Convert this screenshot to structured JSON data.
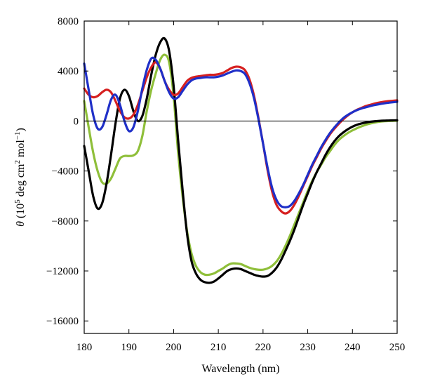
{
  "chart_data": {
    "type": "line",
    "title": "",
    "xlabel": "Wavelength (nm)",
    "ylabel_parts": {
      "symbol": "θ",
      "open": " (10",
      "exp1": "5",
      "mid": " deg cm",
      "exp2": "2",
      "unit": " mol",
      "exp3": "−1",
      "close": ")"
    },
    "xlim": [
      180,
      250
    ],
    "ylim": [
      -17000,
      8000
    ],
    "xticks": [
      180,
      190,
      200,
      210,
      220,
      230,
      240,
      250
    ],
    "xtick_labels": [
      "180",
      "190",
      "200",
      "210",
      "220",
      "230",
      "240",
      "250"
    ],
    "yticks": [
      -16000,
      -12000,
      -8000,
      -4000,
      0,
      4000,
      8000
    ],
    "ytick_labels": [
      "−16000",
      "−12000",
      "−8000",
      "−4000",
      "0",
      "4000",
      "8000"
    ],
    "zero_line": true,
    "grid": false,
    "legend": "none",
    "series": [
      {
        "color": "#8fbf3a",
        "points": [
          [
            180,
            1600
          ],
          [
            181,
            -500
          ],
          [
            182,
            -2500
          ],
          [
            183,
            -4000
          ],
          [
            184,
            -4900
          ],
          [
            185,
            -5000
          ],
          [
            186,
            -4600
          ],
          [
            187,
            -3800
          ],
          [
            188,
            -3000
          ],
          [
            189,
            -2800
          ],
          [
            190,
            -2800
          ],
          [
            191,
            -2750
          ],
          [
            192,
            -2400
          ],
          [
            193,
            -1200
          ],
          [
            194,
            800
          ],
          [
            195,
            2500
          ],
          [
            196,
            3800
          ],
          [
            197,
            4900
          ],
          [
            198,
            5300
          ],
          [
            199,
            4700
          ],
          [
            200,
            2000
          ],
          [
            201,
            -2500
          ],
          [
            202,
            -6000
          ],
          [
            203,
            -8800
          ],
          [
            204,
            -10600
          ],
          [
            205,
            -11600
          ],
          [
            206,
            -12100
          ],
          [
            207,
            -12300
          ],
          [
            208,
            -12300
          ],
          [
            209,
            -12200
          ],
          [
            210,
            -12000
          ],
          [
            211,
            -11800
          ],
          [
            212,
            -11550
          ],
          [
            213,
            -11400
          ],
          [
            214,
            -11400
          ],
          [
            215,
            -11450
          ],
          [
            216,
            -11600
          ],
          [
            217,
            -11750
          ],
          [
            218,
            -11850
          ],
          [
            219,
            -11900
          ],
          [
            220,
            -11900
          ],
          [
            221,
            -11800
          ],
          [
            222,
            -11600
          ],
          [
            223,
            -11250
          ],
          [
            224,
            -10700
          ],
          [
            225,
            -10000
          ],
          [
            226,
            -9200
          ],
          [
            227,
            -8300
          ],
          [
            228,
            -7400
          ],
          [
            229,
            -6500
          ],
          [
            230,
            -5600
          ],
          [
            231,
            -4800
          ],
          [
            232,
            -4100
          ],
          [
            233,
            -3500
          ],
          [
            234,
            -2900
          ],
          [
            235,
            -2400
          ],
          [
            236,
            -1900
          ],
          [
            237,
            -1500
          ],
          [
            238,
            -1200
          ],
          [
            239,
            -950
          ],
          [
            240,
            -750
          ],
          [
            241,
            -580
          ],
          [
            242,
            -430
          ],
          [
            243,
            -300
          ],
          [
            244,
            -200
          ],
          [
            245,
            -120
          ],
          [
            246,
            -60
          ],
          [
            247,
            -20
          ],
          [
            248,
            0
          ],
          [
            249,
            10
          ],
          [
            250,
            20
          ]
        ]
      },
      {
        "color": "#000000",
        "points": [
          [
            180,
            -2000
          ],
          [
            181,
            -4000
          ],
          [
            182,
            -6000
          ],
          [
            183,
            -7000
          ],
          [
            184,
            -6600
          ],
          [
            185,
            -5000
          ],
          [
            186,
            -2700
          ],
          [
            187,
            -200
          ],
          [
            188,
            1800
          ],
          [
            189,
            2500
          ],
          [
            190,
            2000
          ],
          [
            191,
            800
          ],
          [
            192,
            0
          ],
          [
            193,
            400
          ],
          [
            194,
            1800
          ],
          [
            195,
            3700
          ],
          [
            196,
            5300
          ],
          [
            197,
            6300
          ],
          [
            198,
            6600
          ],
          [
            199,
            5600
          ],
          [
            200,
            2800
          ],
          [
            201,
            -1500
          ],
          [
            202,
            -5500
          ],
          [
            203,
            -9000
          ],
          [
            204,
            -11200
          ],
          [
            205,
            -12200
          ],
          [
            206,
            -12700
          ],
          [
            207,
            -12900
          ],
          [
            208,
            -12950
          ],
          [
            209,
            -12850
          ],
          [
            210,
            -12600
          ],
          [
            211,
            -12300
          ],
          [
            212,
            -12000
          ],
          [
            213,
            -11850
          ],
          [
            214,
            -11800
          ],
          [
            215,
            -11850
          ],
          [
            216,
            -12000
          ],
          [
            217,
            -12150
          ],
          [
            218,
            -12300
          ],
          [
            219,
            -12400
          ],
          [
            220,
            -12450
          ],
          [
            221,
            -12400
          ],
          [
            222,
            -12150
          ],
          [
            223,
            -11750
          ],
          [
            224,
            -11150
          ],
          [
            225,
            -10400
          ],
          [
            226,
            -9600
          ],
          [
            227,
            -8700
          ],
          [
            228,
            -7700
          ],
          [
            229,
            -6700
          ],
          [
            230,
            -5800
          ],
          [
            231,
            -4900
          ],
          [
            232,
            -4100
          ],
          [
            233,
            -3400
          ],
          [
            234,
            -2700
          ],
          [
            235,
            -2100
          ],
          [
            236,
            -1600
          ],
          [
            237,
            -1200
          ],
          [
            238,
            -900
          ],
          [
            239,
            -650
          ],
          [
            240,
            -450
          ],
          [
            241,
            -300
          ],
          [
            242,
            -200
          ],
          [
            243,
            -120
          ],
          [
            244,
            -60
          ],
          [
            245,
            -20
          ],
          [
            246,
            10
          ],
          [
            247,
            30
          ],
          [
            248,
            40
          ],
          [
            249,
            50
          ],
          [
            250,
            60
          ]
        ]
      },
      {
        "color": "#d62020",
        "points": [
          [
            180,
            2600
          ],
          [
            181,
            2100
          ],
          [
            182,
            1900
          ],
          [
            183,
            2000
          ],
          [
            184,
            2300
          ],
          [
            185,
            2500
          ],
          [
            186,
            2300
          ],
          [
            187,
            1600
          ],
          [
            188,
            800
          ],
          [
            189,
            300
          ],
          [
            190,
            200
          ],
          [
            191,
            500
          ],
          [
            192,
            1300
          ],
          [
            193,
            2400
          ],
          [
            194,
            3500
          ],
          [
            195,
            4300
          ],
          [
            196,
            4700
          ],
          [
            197,
            4200
          ],
          [
            198,
            3200
          ],
          [
            199,
            2500
          ],
          [
            200,
            2100
          ],
          [
            201,
            2200
          ],
          [
            202,
            2700
          ],
          [
            203,
            3200
          ],
          [
            204,
            3450
          ],
          [
            205,
            3550
          ],
          [
            206,
            3600
          ],
          [
            207,
            3650
          ],
          [
            208,
            3700
          ],
          [
            209,
            3700
          ],
          [
            210,
            3750
          ],
          [
            211,
            3850
          ],
          [
            212,
            4050
          ],
          [
            213,
            4250
          ],
          [
            214,
            4350
          ],
          [
            215,
            4300
          ],
          [
            216,
            4050
          ],
          [
            217,
            3300
          ],
          [
            218,
            2000
          ],
          [
            219,
            200
          ],
          [
            220,
            -1800
          ],
          [
            221,
            -3900
          ],
          [
            222,
            -5600
          ],
          [
            223,
            -6700
          ],
          [
            224,
            -7200
          ],
          [
            225,
            -7400
          ],
          [
            226,
            -7200
          ],
          [
            227,
            -6700
          ],
          [
            228,
            -6000
          ],
          [
            229,
            -5200
          ],
          [
            230,
            -4400
          ],
          [
            231,
            -3600
          ],
          [
            232,
            -2900
          ],
          [
            233,
            -2200
          ],
          [
            234,
            -1600
          ],
          [
            235,
            -1050
          ],
          [
            236,
            -600
          ],
          [
            237,
            -200
          ],
          [
            238,
            150
          ],
          [
            239,
            450
          ],
          [
            240,
            700
          ],
          [
            241,
            900
          ],
          [
            242,
            1050
          ],
          [
            243,
            1200
          ],
          [
            244,
            1300
          ],
          [
            245,
            1400
          ],
          [
            246,
            1480
          ],
          [
            247,
            1540
          ],
          [
            248,
            1590
          ],
          [
            249,
            1620
          ],
          [
            250,
            1650
          ]
        ]
      },
      {
        "color": "#1f2fc8",
        "points": [
          [
            180,
            4600
          ],
          [
            181,
            2500
          ],
          [
            182,
            500
          ],
          [
            183,
            -600
          ],
          [
            184,
            -500
          ],
          [
            185,
            500
          ],
          [
            186,
            1700
          ],
          [
            187,
            2100
          ],
          [
            188,
            1300
          ],
          [
            189,
            0
          ],
          [
            190,
            -800
          ],
          [
            191,
            -500
          ],
          [
            192,
            800
          ],
          [
            193,
            2600
          ],
          [
            194,
            4100
          ],
          [
            195,
            5000
          ],
          [
            196,
            4900
          ],
          [
            197,
            4200
          ],
          [
            198,
            3200
          ],
          [
            199,
            2300
          ],
          [
            200,
            1800
          ],
          [
            201,
            1900
          ],
          [
            202,
            2400
          ],
          [
            203,
            2900
          ],
          [
            204,
            3250
          ],
          [
            205,
            3400
          ],
          [
            206,
            3450
          ],
          [
            207,
            3500
          ],
          [
            208,
            3500
          ],
          [
            209,
            3500
          ],
          [
            210,
            3550
          ],
          [
            211,
            3650
          ],
          [
            212,
            3800
          ],
          [
            213,
            3950
          ],
          [
            214,
            4050
          ],
          [
            215,
            4000
          ],
          [
            216,
            3750
          ],
          [
            217,
            3000
          ],
          [
            218,
            1800
          ],
          [
            219,
            100
          ],
          [
            220,
            -1800
          ],
          [
            221,
            -3700
          ],
          [
            222,
            -5300
          ],
          [
            223,
            -6300
          ],
          [
            224,
            -6800
          ],
          [
            225,
            -6900
          ],
          [
            226,
            -6800
          ],
          [
            227,
            -6400
          ],
          [
            228,
            -5800
          ],
          [
            229,
            -5100
          ],
          [
            230,
            -4300
          ],
          [
            231,
            -3500
          ],
          [
            232,
            -2800
          ],
          [
            233,
            -2100
          ],
          [
            234,
            -1500
          ],
          [
            235,
            -950
          ],
          [
            236,
            -500
          ],
          [
            237,
            -100
          ],
          [
            238,
            250
          ],
          [
            239,
            500
          ],
          [
            240,
            700
          ],
          [
            241,
            870
          ],
          [
            242,
            1000
          ],
          [
            243,
            1100
          ],
          [
            244,
            1200
          ],
          [
            245,
            1280
          ],
          [
            246,
            1350
          ],
          [
            247,
            1410
          ],
          [
            248,
            1460
          ],
          [
            249,
            1500
          ],
          [
            250,
            1540
          ]
        ]
      }
    ]
  }
}
